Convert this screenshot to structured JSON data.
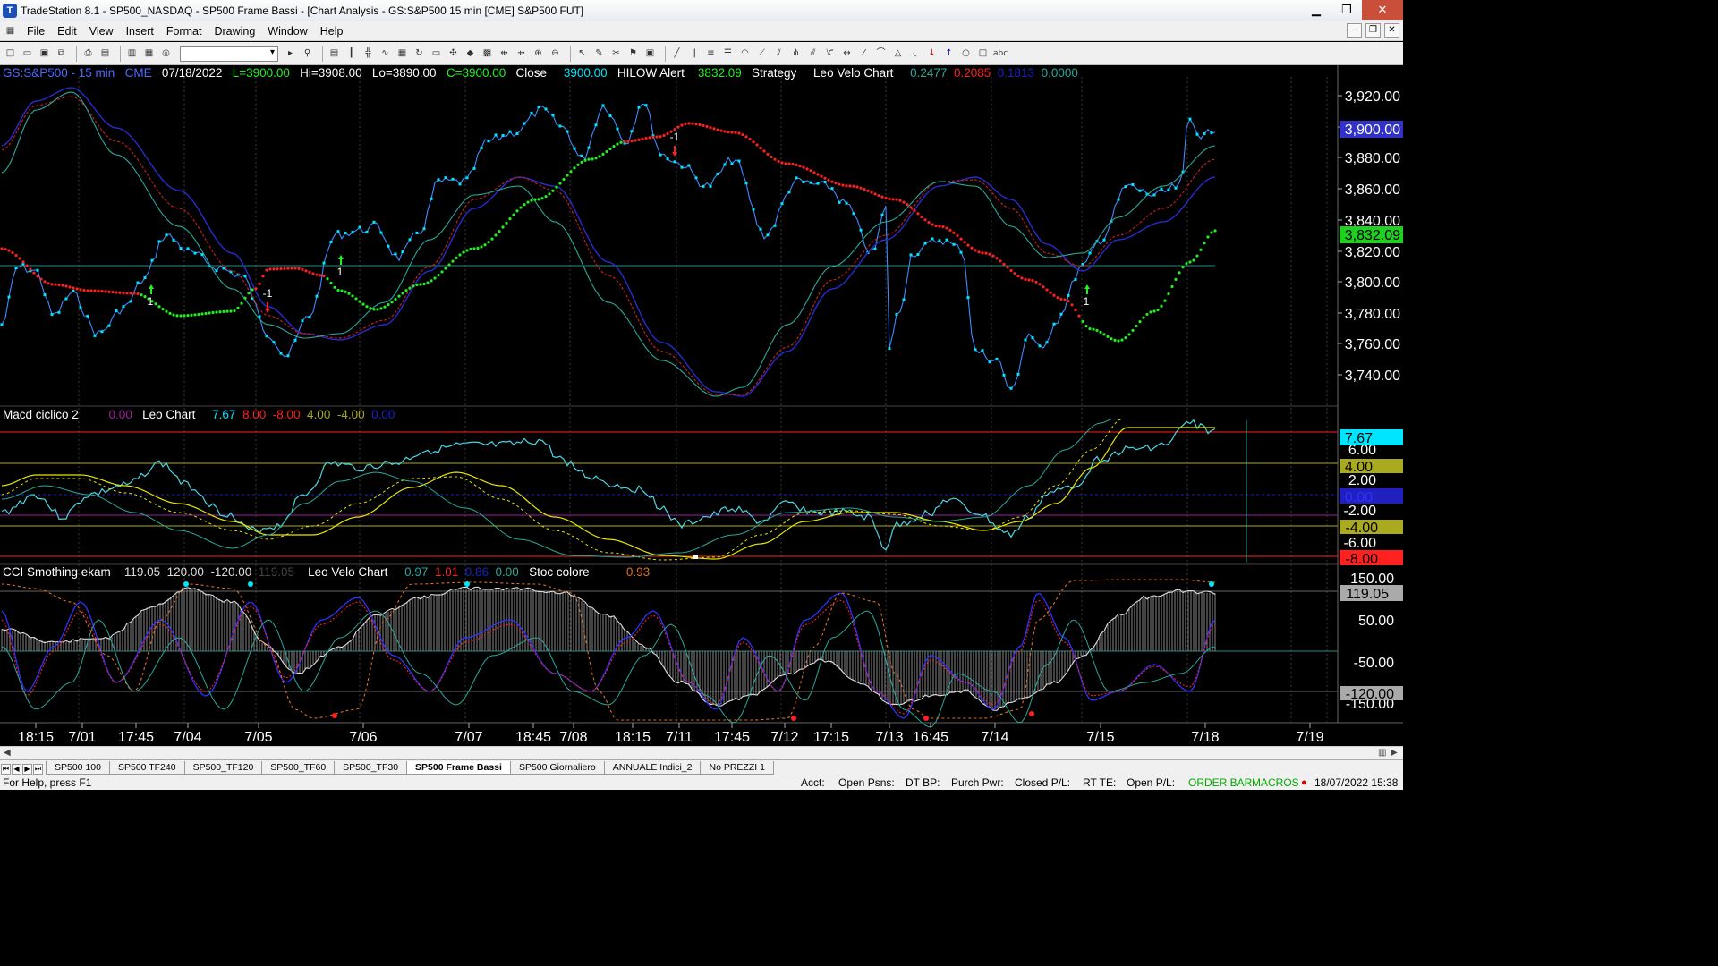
{
  "window": {
    "app_icon": "tradestation-icon",
    "title": "TradeStation 8.1 - SP500_NASDAQ - SP500 Frame Bassi - [Chart Analysis - GS:S&P500  15 min  [CME] S&P500 FUT]",
    "minimize": "▁",
    "maximize": "❐",
    "close": "✕"
  },
  "menu": [
    "File",
    "Edit",
    "View",
    "Insert",
    "Format",
    "Drawing",
    "Window",
    "Help"
  ],
  "mdi_buttons": [
    "–",
    "❐",
    "✕"
  ],
  "toolbar_icons": [
    "new-icon",
    "open-icon",
    "save-icon",
    "copy-icon",
    "print-icon",
    "preview-icon",
    "chart-icon",
    "grid-icon",
    "radar-icon",
    "link-icon",
    "table-icon",
    "zoom-in-icon",
    "zoom-out-icon",
    "cursor-icon",
    "tools-icon",
    "trendline-icon",
    "fib-icon",
    "circle-icon",
    "rect-icon",
    "text-icon"
  ],
  "price_header": {
    "symbol": "GS:S&P500 - 15 min",
    "exchange": "CME",
    "date": "07/18/2022",
    "last": "L=3900.00",
    "hi": "Hi=3908.00",
    "lo": "Lo=3890.00",
    "close_val": "C=3900.00",
    "close_lbl": "Close",
    "close_num": "3900.00",
    "hilow": "HILOW Alert",
    "hilow_val": "3832.09",
    "strategy": "Strategy",
    "leo": "Leo Velo Chart",
    "v1": "0.2477",
    "v2": "0.2085",
    "v3": "0.1813",
    "v4": "0.0000"
  },
  "macd_header": {
    "name": "Macd ciclico 2",
    "v0": "0.00",
    "leo": "Leo Chart",
    "a": "7.67",
    "b": "8.00",
    "c": "-8.00",
    "d": "4.00",
    "e": "-4.00",
    "f": "0.00"
  },
  "cci_header": {
    "name": "CCI Smothing ekam",
    "a": "119.05",
    "b": "120.00",
    "c": "-120.00",
    "d": "119.05",
    "leo": "Leo Velo Chart",
    "e": "0.97",
    "f": "1.01",
    "g": "0.86",
    "h": "0.00",
    "stoc": "Stoc colore",
    "i": "0.93"
  },
  "price_axis": [
    "3,920.00",
    "3,900.00",
    "3,880.00",
    "3,860.00",
    "3,840.00",
    "3,820.00",
    "3,800.00",
    "3,780.00",
    "3,760.00",
    "3,740.00"
  ],
  "price_badges": {
    "last": "3,900.00",
    "alert": "3,832.09"
  },
  "macd_axis": [
    "6.00",
    "4.00",
    "2.00",
    "-2.00",
    "-4.00",
    "-6.00"
  ],
  "macd_badges": {
    "a": "7.67",
    "d": "4.00",
    "f": "0.00",
    "e": "-4.00",
    "c": "-8.00"
  },
  "cci_axis": [
    "150.00",
    "50.00",
    "-50.00",
    "-150.00"
  ],
  "cci_badges": {
    "a": "119.05",
    "c": "-120.00"
  },
  "time_axis": [
    "18:15",
    "7/01",
    "17:45",
    "7/04",
    "7/05",
    "7/06",
    "7/07",
    "18:45",
    "7/08",
    "18:15",
    "7/11",
    "17:45",
    "7/12",
    "17:15",
    "7/13",
    "16:45",
    "7/14",
    "7/15",
    "7/18",
    "7/19"
  ],
  "markers": [
    "1",
    "-1",
    "1",
    "-1",
    "1"
  ],
  "tabs": [
    "SP500 100",
    "SP500 TF240",
    "SP500_TF120",
    "SP500_TF60",
    "SP500_TF30",
    "SP500 Frame Bassi",
    "SP500 Giornaliero",
    "ANNUALE Indici_2",
    "No PREZZI 1"
  ],
  "status": {
    "help": "For Help, press F1",
    "acct": "Acct:",
    "open_psns": "Open Psns:",
    "dt_bp": "DT BP:",
    "purch": "Purch Pwr:",
    "closed": "Closed P/L:",
    "rt": "RT TE:",
    "open_pl": "Open P/L:",
    "order": "ORDER BAR",
    "macros": "MACROS",
    "datetime": "18/07/2022 15:38"
  },
  "colors": {
    "price": "#4aa3ff",
    "cyan": "#00e5ff",
    "red": "#ff2020",
    "green": "#20f020",
    "yellow": "#e6e600",
    "navy": "#2020c0",
    "teal": "#2aa89a"
  }
}
